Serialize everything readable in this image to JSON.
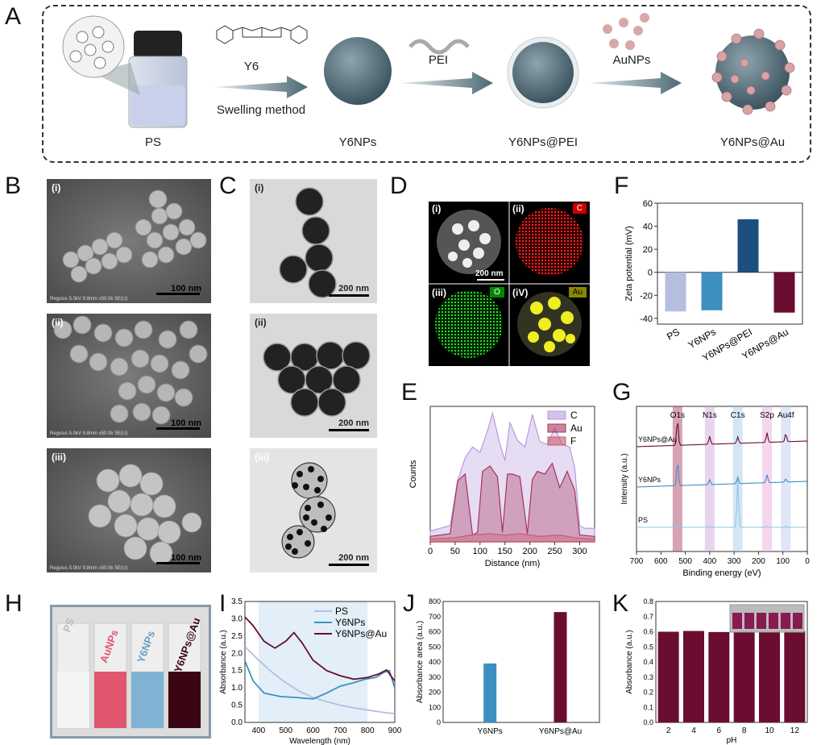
{
  "panels": {
    "A": "A",
    "B": "B",
    "C": "C",
    "D": "D",
    "E": "E",
    "F": "F",
    "G": "G",
    "H": "H",
    "I": "I",
    "J": "J",
    "K": "K"
  },
  "schematic": {
    "ps": "PS",
    "y6": "Y6",
    "swelling": "Swelling method",
    "y6nps": "Y6NPs",
    "pei": "PEI",
    "y6nps_pei": "Y6NPs@PEI",
    "aunps": "AuNPs",
    "y6nps_au": "Y6NPs@Au"
  },
  "panelB": {
    "sub": [
      "(i)",
      "(ii)",
      "(iii)"
    ],
    "scale": "100 nm",
    "footer": "Regulus 5.0kV 9.8mm x50.0k SE(U)"
  },
  "panelC": {
    "sub": [
      "(i)",
      "(ii)",
      "(iii)"
    ],
    "scale": "200 nm",
    "small": "200 nm"
  },
  "panelD": {
    "sub": [
      "(i)",
      "(ii)",
      "(iii)",
      "(iV)"
    ],
    "chips": [
      "C",
      "O",
      "Au"
    ],
    "scale": "200 nm"
  },
  "panelH": {
    "labels": [
      "PS",
      "AuNPs",
      "Y6NPs",
      "Y6NPs@Au"
    ],
    "colors": [
      "#f2f2f2",
      "#e0566f",
      "#7fb2d3",
      "#3a0614"
    ]
  },
  "colors": {
    "ps": "#b6bee0",
    "y6nps": "#3d8fc2",
    "pei": "#1c4f7e",
    "au": "#6b0d30",
    "c": "#b89ae0",
    "au_line": "#a5335a",
    "f": "#c95a6a"
  },
  "chart_data": [
    {
      "id": "F",
      "type": "bar",
      "categories": [
        "PS",
        "Y6NPs",
        "Y6NPs@PEI",
        "Y6NPs@Au"
      ],
      "values": [
        -34,
        -33,
        46,
        -35
      ],
      "ylabel": "Zeta potential (mV)",
      "ylim": [
        -45,
        60
      ],
      "yticks": [
        -40,
        -20,
        0,
        20,
        40,
        60
      ]
    },
    {
      "id": "E",
      "type": "area",
      "xlabel": "Distance (nm)",
      "ylabel": "Counts",
      "xlim": [
        0,
        330
      ],
      "xticks": [
        0,
        50,
        100,
        150,
        200,
        250,
        300
      ],
      "series": [
        {
          "name": "C",
          "x": [
            0,
            20,
            40,
            55,
            70,
            85,
            100,
            115,
            125,
            140,
            150,
            160,
            175,
            190,
            205,
            220,
            235,
            250,
            265,
            280,
            290,
            300,
            310,
            330
          ],
          "y": [
            0.08,
            0.1,
            0.12,
            0.45,
            0.62,
            0.7,
            0.66,
            0.82,
            0.95,
            0.72,
            0.6,
            0.88,
            0.75,
            0.7,
            0.94,
            0.74,
            0.72,
            0.84,
            0.72,
            0.7,
            0.55,
            0.12,
            0.1,
            0.1
          ]
        },
        {
          "name": "Au",
          "x": [
            0,
            20,
            40,
            55,
            70,
            85,
            95,
            105,
            120,
            135,
            145,
            155,
            165,
            180,
            195,
            205,
            215,
            230,
            245,
            260,
            275,
            290,
            300,
            330
          ],
          "y": [
            0.04,
            0.05,
            0.06,
            0.45,
            0.5,
            0.05,
            0.07,
            0.52,
            0.56,
            0.48,
            0.07,
            0.5,
            0.5,
            0.48,
            0.06,
            0.46,
            0.52,
            0.5,
            0.58,
            0.4,
            0.52,
            0.38,
            0.05,
            0.04
          ]
        },
        {
          "name": "F",
          "x": [
            0,
            50,
            80,
            120,
            150,
            180,
            220,
            260,
            290,
            330
          ],
          "y": [
            0.02,
            0.03,
            0.05,
            0.06,
            0.05,
            0.06,
            0.04,
            0.05,
            0.03,
            0.02
          ]
        }
      ]
    },
    {
      "id": "G",
      "type": "line",
      "xlabel": "Binding energy (eV)",
      "ylabel": "Intensity (a.u.)",
      "xlim": [
        700,
        0
      ],
      "xticks": [
        700,
        600,
        500,
        400,
        300,
        200,
        100,
        0
      ],
      "peaks": [
        "O1s",
        "N1s",
        "C1s",
        "S2p",
        "Au4f"
      ],
      "peak_positions": [
        532,
        400,
        285,
        165,
        88
      ],
      "series": [
        {
          "name": "Y6NPs@Au"
        },
        {
          "name": "Y6NPs"
        },
        {
          "name": "PS"
        }
      ]
    },
    {
      "id": "I",
      "type": "line",
      "xlabel": "Wavelength (nm)",
      "ylabel": "Absorbance (a.u.)",
      "xlim": [
        350,
        900
      ],
      "ylim": [
        0,
        3.5
      ],
      "xticks": [
        400,
        500,
        600,
        700,
        800,
        900
      ],
      "yticks": [
        0.0,
        0.5,
        1.0,
        1.5,
        2.0,
        2.5,
        3.0,
        3.5
      ],
      "series": [
        {
          "name": "PS",
          "x": [
            350,
            400,
            450,
            500,
            550,
            600,
            650,
            700,
            750,
            800,
            850,
            900
          ],
          "y": [
            2.2,
            1.8,
            1.45,
            1.15,
            0.9,
            0.72,
            0.6,
            0.5,
            0.42,
            0.36,
            0.3,
            0.25
          ]
        },
        {
          "name": "Y6NPs",
          "x": [
            350,
            380,
            420,
            480,
            540,
            600,
            650,
            700,
            750,
            790,
            830,
            860,
            880,
            900
          ],
          "y": [
            1.78,
            1.2,
            0.85,
            0.75,
            0.72,
            0.68,
            0.85,
            1.05,
            1.15,
            1.25,
            1.3,
            1.45,
            1.5,
            1.0
          ]
        },
        {
          "name": "Y6NPs@Au",
          "x": [
            350,
            380,
            420,
            460,
            500,
            530,
            560,
            600,
            650,
            700,
            750,
            800,
            840,
            870,
            890,
            900
          ],
          "y": [
            3.05,
            2.8,
            2.35,
            2.15,
            2.35,
            2.6,
            2.3,
            1.8,
            1.5,
            1.35,
            1.25,
            1.3,
            1.4,
            1.52,
            1.3,
            1.2
          ]
        }
      ]
    },
    {
      "id": "J",
      "type": "bar",
      "categories": [
        "Y6NPs",
        "Y6NPs@Au"
      ],
      "values": [
        390,
        730
      ],
      "ylabel": "Absorbance area (a.u.)",
      "ylim": [
        0,
        800
      ],
      "yticks": [
        0,
        100,
        200,
        300,
        400,
        500,
        600,
        700,
        800
      ]
    },
    {
      "id": "K",
      "type": "bar",
      "categories": [
        "2",
        "4",
        "6",
        "8",
        "10",
        "12"
      ],
      "values": [
        0.6,
        0.605,
        0.598,
        0.64,
        0.61,
        0.605
      ],
      "xlabel": "pH",
      "ylabel": "Absorbance (a.u.)",
      "ylim": [
        0,
        0.8
      ],
      "yticks": [
        0.0,
        0.1,
        0.2,
        0.3,
        0.4,
        0.5,
        0.6,
        0.7,
        0.8
      ]
    }
  ]
}
